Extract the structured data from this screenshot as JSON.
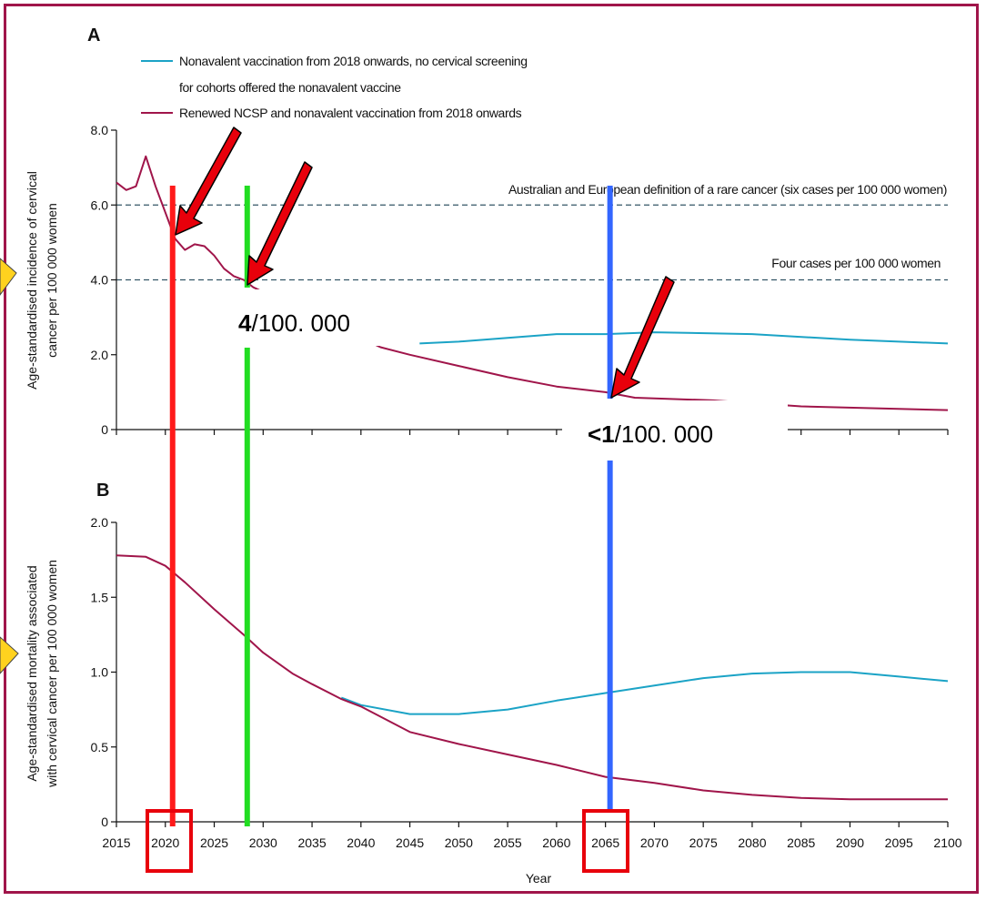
{
  "colors": {
    "frame": "#a0154a",
    "nonavalent": "#1ba3c6",
    "renewed": "#a0154a",
    "red_marker": "#ff1a1a",
    "green_marker": "#22dd22",
    "blue_marker": "#3366ff",
    "arrow": "#e8000b",
    "pointer": "#ffd21f"
  },
  "panel_labels": {
    "a": "A",
    "b": "B"
  },
  "legend": {
    "nonavalent_line1": "Nonavalent vaccination from 2018 onwards, no cervical screening",
    "nonavalent_line2": "for cohorts offered the nonavalent vaccine",
    "renewed": "Renewed NCSP and nonavalent vaccination from 2018 onwards"
  },
  "annotations": {
    "rare_cancer": "Australian and European definition of a rare cancer (six cases per 100 000 women)",
    "four_cases": "Four cases per 100 000 women",
    "four_value_bold": "4",
    "four_value_rest": "/100. 000",
    "less_one_bold": "<1",
    "less_one_rest": "/100. 000",
    "markers_years": [
      2020,
      2028,
      2065
    ]
  },
  "chart_data": [
    {
      "type": "line",
      "panel": "A",
      "ylabel_line1": "Age-standardised incidence of cervical",
      "ylabel_line2": "cancer per 100 000 women",
      "xlim": [
        2015,
        2100
      ],
      "ylim": [
        0,
        8.0
      ],
      "yticks": [
        "0",
        "2.0",
        "4.0",
        "6.0",
        "8.0"
      ],
      "reference_lines": [
        6.0,
        4.0
      ],
      "series": [
        {
          "name": "Nonavalent vaccination from 2018 onwards, no cervical screening for cohorts offered the nonavalent vaccine",
          "x": [
            2046,
            2050,
            2055,
            2060,
            2065,
            2070,
            2080,
            2090,
            2100
          ],
          "y": [
            2.3,
            2.35,
            2.45,
            2.55,
            2.55,
            2.6,
            2.55,
            2.4,
            2.3
          ]
        },
        {
          "name": "Renewed NCSP and nonavalent vaccination from 2018 onwards",
          "x": [
            2015,
            2016,
            2017,
            2018,
            2019,
            2020,
            2021,
            2022,
            2023,
            2024,
            2025,
            2026,
            2027,
            2028,
            2029,
            2042,
            2045,
            2050,
            2055,
            2060,
            2065,
            2068,
            2076,
            2085,
            2100
          ],
          "y": [
            6.6,
            6.4,
            6.5,
            7.3,
            6.5,
            5.8,
            5.1,
            4.8,
            4.95,
            4.9,
            4.65,
            4.3,
            4.1,
            4.0,
            3.8,
            2.2,
            2.0,
            1.7,
            1.4,
            1.15,
            1.0,
            0.85,
            0.78,
            0.62,
            0.52
          ]
        }
      ]
    },
    {
      "type": "line",
      "panel": "B",
      "xlabel": "Year",
      "ylabel_line1": "Age-standardised mortality associated",
      "ylabel_line2": "with cervical cancer per 100 000 women",
      "xlim": [
        2015,
        2100
      ],
      "ylim": [
        0,
        2.0
      ],
      "xticks": [
        "2015",
        "2020",
        "2025",
        "2030",
        "2035",
        "2040",
        "2045",
        "2050",
        "2055",
        "2060",
        "2065",
        "2070",
        "2075",
        "2080",
        "2085",
        "2090",
        "2095",
        "2100"
      ],
      "yticks": [
        "0",
        "0.5",
        "1.0",
        "1.5",
        "2.0"
      ],
      "series": [
        {
          "name": "Nonavalent vaccination from 2018 onwards, no cervical screening for cohorts offered the nonavalent vaccine",
          "x": [
            2038,
            2040,
            2045,
            2050,
            2055,
            2060,
            2065,
            2070,
            2075,
            2080,
            2085,
            2090,
            2095,
            2100
          ],
          "y": [
            0.83,
            0.78,
            0.72,
            0.72,
            0.75,
            0.81,
            0.86,
            0.91,
            0.96,
            0.99,
            1.0,
            1.0,
            0.97,
            0.94
          ]
        },
        {
          "name": "Renewed NCSP and nonavalent vaccination from 2018 onwards",
          "x": [
            2015,
            2018,
            2020,
            2022,
            2025,
            2028,
            2030,
            2033,
            2035,
            2038,
            2040,
            2045,
            2050,
            2055,
            2060,
            2065,
            2070,
            2075,
            2080,
            2085,
            2090,
            2095,
            2100
          ],
          "y": [
            1.78,
            1.77,
            1.71,
            1.6,
            1.42,
            1.25,
            1.13,
            0.99,
            0.92,
            0.82,
            0.77,
            0.6,
            0.52,
            0.45,
            0.38,
            0.3,
            0.26,
            0.21,
            0.18,
            0.16,
            0.15,
            0.15,
            0.15
          ]
        }
      ]
    }
  ]
}
